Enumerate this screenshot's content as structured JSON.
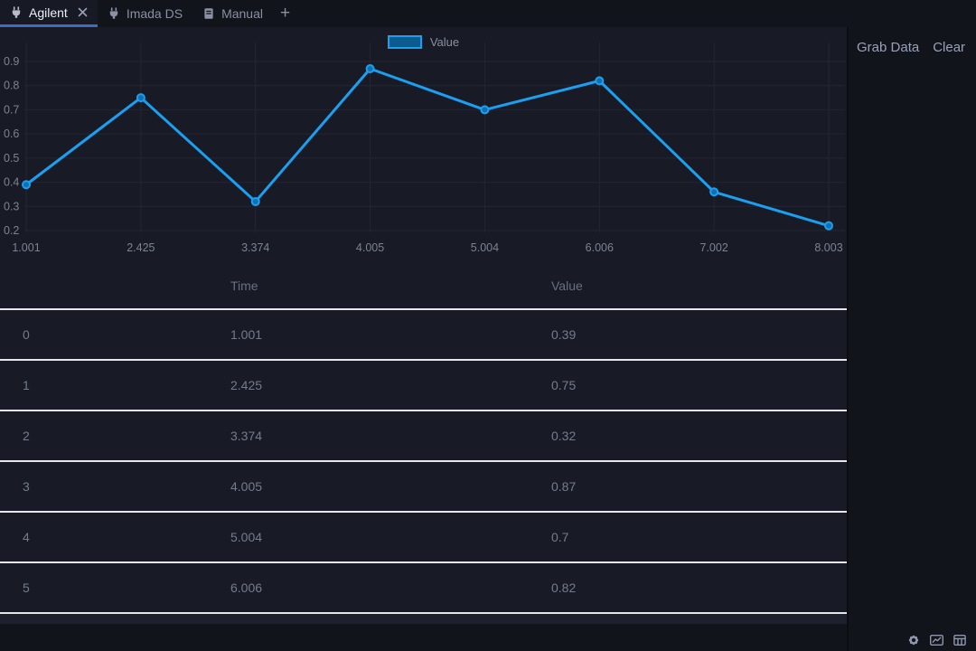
{
  "tab_bar": {
    "tabs": [
      {
        "label": "Agilent",
        "icon": "plug-icon",
        "active": true
      },
      {
        "label": "Imada DS",
        "icon": "plug-icon",
        "active": false
      },
      {
        "label": "Manual",
        "icon": "book-icon",
        "active": false
      }
    ],
    "add_tab_label": "+"
  },
  "actions": {
    "grab_data_label": "Grab Data",
    "clear_label": "Clear"
  },
  "chart_data": {
    "type": "line",
    "title": "",
    "xlabel": "",
    "ylabel": "",
    "x": [
      1.001,
      2.425,
      3.374,
      4.005,
      5.004,
      6.006,
      7.002,
      8.003
    ],
    "x_tick_labels": [
      "1.001",
      "2.425",
      "3.374",
      "4.005",
      "5.004",
      "6.006",
      "7.002",
      "8.003"
    ],
    "series": [
      {
        "name": "Value",
        "color": "#1b9ff0",
        "values": [
          0.39,
          0.75,
          0.32,
          0.87,
          0.7,
          0.82,
          0.36,
          0.22
        ]
      }
    ],
    "y_ticks": [
      0.2,
      0.3,
      0.4,
      0.5,
      0.6,
      0.7,
      0.8,
      0.9
    ],
    "y_tick_labels": [
      "0.2",
      "0.3",
      "0.4",
      "0.5",
      "0.6",
      "0.7",
      "0.8",
      "0.9"
    ],
    "ylim": [
      0.2,
      0.9
    ],
    "grid": true,
    "x_axis_type": "category-evenly-spaced",
    "legend_position": "top-center"
  },
  "table": {
    "columns": [
      {
        "key": "index",
        "label": ""
      },
      {
        "key": "time",
        "label": "Time"
      },
      {
        "key": "value",
        "label": "Value"
      }
    ],
    "rows": [
      {
        "index": "0",
        "time": "1.001",
        "value": "0.39"
      },
      {
        "index": "1",
        "time": "2.425",
        "value": "0.75"
      },
      {
        "index": "2",
        "time": "3.374",
        "value": "0.32"
      },
      {
        "index": "3",
        "time": "4.005",
        "value": "0.87"
      },
      {
        "index": "4",
        "time": "5.004",
        "value": "0.7"
      },
      {
        "index": "5",
        "time": "6.006",
        "value": "0.82"
      }
    ],
    "partial_row_visible": true
  },
  "status_bar": {
    "icons": [
      "gear-icon",
      "line-chart-icon",
      "table-icon"
    ]
  },
  "colors": {
    "accent_blue": "#1b9ff0",
    "marker_fill": "#0f70b2",
    "tab_underline": "#3e6cc3",
    "page_bg": "#12141c",
    "panel_bg": "#181b26",
    "row_divider": "#e7e7ea",
    "grid_line": "#222634",
    "text_muted": "#7d8290"
  }
}
